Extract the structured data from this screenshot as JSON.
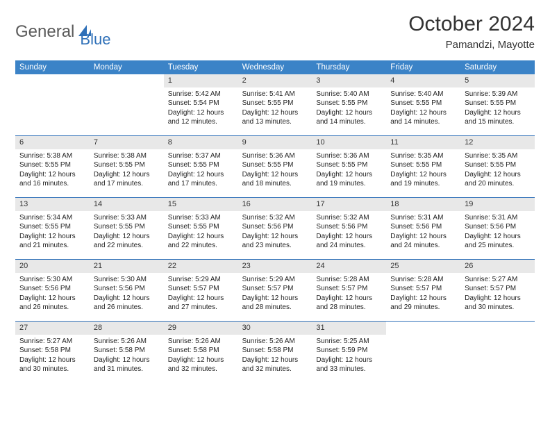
{
  "logo": {
    "general": "General",
    "blue": "Blue"
  },
  "title": "October 2024",
  "location": "Pamandzi, Mayotte",
  "colors": {
    "header_bg": "#3b83c7",
    "header_text": "#ffffff",
    "daynum_bg": "#e8e8e8",
    "week_border": "#2f70b8",
    "logo_general": "#5a5a5a",
    "logo_blue": "#2f70b8"
  },
  "weekdays": [
    "Sunday",
    "Monday",
    "Tuesday",
    "Wednesday",
    "Thursday",
    "Friday",
    "Saturday"
  ],
  "weeks": [
    [
      null,
      null,
      {
        "n": "1",
        "sr": "Sunrise: 5:42 AM",
        "ss": "Sunset: 5:54 PM",
        "d1": "Daylight: 12 hours",
        "d2": "and 12 minutes."
      },
      {
        "n": "2",
        "sr": "Sunrise: 5:41 AM",
        "ss": "Sunset: 5:55 PM",
        "d1": "Daylight: 12 hours",
        "d2": "and 13 minutes."
      },
      {
        "n": "3",
        "sr": "Sunrise: 5:40 AM",
        "ss": "Sunset: 5:55 PM",
        "d1": "Daylight: 12 hours",
        "d2": "and 14 minutes."
      },
      {
        "n": "4",
        "sr": "Sunrise: 5:40 AM",
        "ss": "Sunset: 5:55 PM",
        "d1": "Daylight: 12 hours",
        "d2": "and 14 minutes."
      },
      {
        "n": "5",
        "sr": "Sunrise: 5:39 AM",
        "ss": "Sunset: 5:55 PM",
        "d1": "Daylight: 12 hours",
        "d2": "and 15 minutes."
      }
    ],
    [
      {
        "n": "6",
        "sr": "Sunrise: 5:38 AM",
        "ss": "Sunset: 5:55 PM",
        "d1": "Daylight: 12 hours",
        "d2": "and 16 minutes."
      },
      {
        "n": "7",
        "sr": "Sunrise: 5:38 AM",
        "ss": "Sunset: 5:55 PM",
        "d1": "Daylight: 12 hours",
        "d2": "and 17 minutes."
      },
      {
        "n": "8",
        "sr": "Sunrise: 5:37 AM",
        "ss": "Sunset: 5:55 PM",
        "d1": "Daylight: 12 hours",
        "d2": "and 17 minutes."
      },
      {
        "n": "9",
        "sr": "Sunrise: 5:36 AM",
        "ss": "Sunset: 5:55 PM",
        "d1": "Daylight: 12 hours",
        "d2": "and 18 minutes."
      },
      {
        "n": "10",
        "sr": "Sunrise: 5:36 AM",
        "ss": "Sunset: 5:55 PM",
        "d1": "Daylight: 12 hours",
        "d2": "and 19 minutes."
      },
      {
        "n": "11",
        "sr": "Sunrise: 5:35 AM",
        "ss": "Sunset: 5:55 PM",
        "d1": "Daylight: 12 hours",
        "d2": "and 19 minutes."
      },
      {
        "n": "12",
        "sr": "Sunrise: 5:35 AM",
        "ss": "Sunset: 5:55 PM",
        "d1": "Daylight: 12 hours",
        "d2": "and 20 minutes."
      }
    ],
    [
      {
        "n": "13",
        "sr": "Sunrise: 5:34 AM",
        "ss": "Sunset: 5:55 PM",
        "d1": "Daylight: 12 hours",
        "d2": "and 21 minutes."
      },
      {
        "n": "14",
        "sr": "Sunrise: 5:33 AM",
        "ss": "Sunset: 5:55 PM",
        "d1": "Daylight: 12 hours",
        "d2": "and 22 minutes."
      },
      {
        "n": "15",
        "sr": "Sunrise: 5:33 AM",
        "ss": "Sunset: 5:55 PM",
        "d1": "Daylight: 12 hours",
        "d2": "and 22 minutes."
      },
      {
        "n": "16",
        "sr": "Sunrise: 5:32 AM",
        "ss": "Sunset: 5:56 PM",
        "d1": "Daylight: 12 hours",
        "d2": "and 23 minutes."
      },
      {
        "n": "17",
        "sr": "Sunrise: 5:32 AM",
        "ss": "Sunset: 5:56 PM",
        "d1": "Daylight: 12 hours",
        "d2": "and 24 minutes."
      },
      {
        "n": "18",
        "sr": "Sunrise: 5:31 AM",
        "ss": "Sunset: 5:56 PM",
        "d1": "Daylight: 12 hours",
        "d2": "and 24 minutes."
      },
      {
        "n": "19",
        "sr": "Sunrise: 5:31 AM",
        "ss": "Sunset: 5:56 PM",
        "d1": "Daylight: 12 hours",
        "d2": "and 25 minutes."
      }
    ],
    [
      {
        "n": "20",
        "sr": "Sunrise: 5:30 AM",
        "ss": "Sunset: 5:56 PM",
        "d1": "Daylight: 12 hours",
        "d2": "and 26 minutes."
      },
      {
        "n": "21",
        "sr": "Sunrise: 5:30 AM",
        "ss": "Sunset: 5:56 PM",
        "d1": "Daylight: 12 hours",
        "d2": "and 26 minutes."
      },
      {
        "n": "22",
        "sr": "Sunrise: 5:29 AM",
        "ss": "Sunset: 5:57 PM",
        "d1": "Daylight: 12 hours",
        "d2": "and 27 minutes."
      },
      {
        "n": "23",
        "sr": "Sunrise: 5:29 AM",
        "ss": "Sunset: 5:57 PM",
        "d1": "Daylight: 12 hours",
        "d2": "and 28 minutes."
      },
      {
        "n": "24",
        "sr": "Sunrise: 5:28 AM",
        "ss": "Sunset: 5:57 PM",
        "d1": "Daylight: 12 hours",
        "d2": "and 28 minutes."
      },
      {
        "n": "25",
        "sr": "Sunrise: 5:28 AM",
        "ss": "Sunset: 5:57 PM",
        "d1": "Daylight: 12 hours",
        "d2": "and 29 minutes."
      },
      {
        "n": "26",
        "sr": "Sunrise: 5:27 AM",
        "ss": "Sunset: 5:57 PM",
        "d1": "Daylight: 12 hours",
        "d2": "and 30 minutes."
      }
    ],
    [
      {
        "n": "27",
        "sr": "Sunrise: 5:27 AM",
        "ss": "Sunset: 5:58 PM",
        "d1": "Daylight: 12 hours",
        "d2": "and 30 minutes."
      },
      {
        "n": "28",
        "sr": "Sunrise: 5:26 AM",
        "ss": "Sunset: 5:58 PM",
        "d1": "Daylight: 12 hours",
        "d2": "and 31 minutes."
      },
      {
        "n": "29",
        "sr": "Sunrise: 5:26 AM",
        "ss": "Sunset: 5:58 PM",
        "d1": "Daylight: 12 hours",
        "d2": "and 32 minutes."
      },
      {
        "n": "30",
        "sr": "Sunrise: 5:26 AM",
        "ss": "Sunset: 5:58 PM",
        "d1": "Daylight: 12 hours",
        "d2": "and 32 minutes."
      },
      {
        "n": "31",
        "sr": "Sunrise: 5:25 AM",
        "ss": "Sunset: 5:59 PM",
        "d1": "Daylight: 12 hours",
        "d2": "and 33 minutes."
      },
      null,
      null
    ]
  ]
}
